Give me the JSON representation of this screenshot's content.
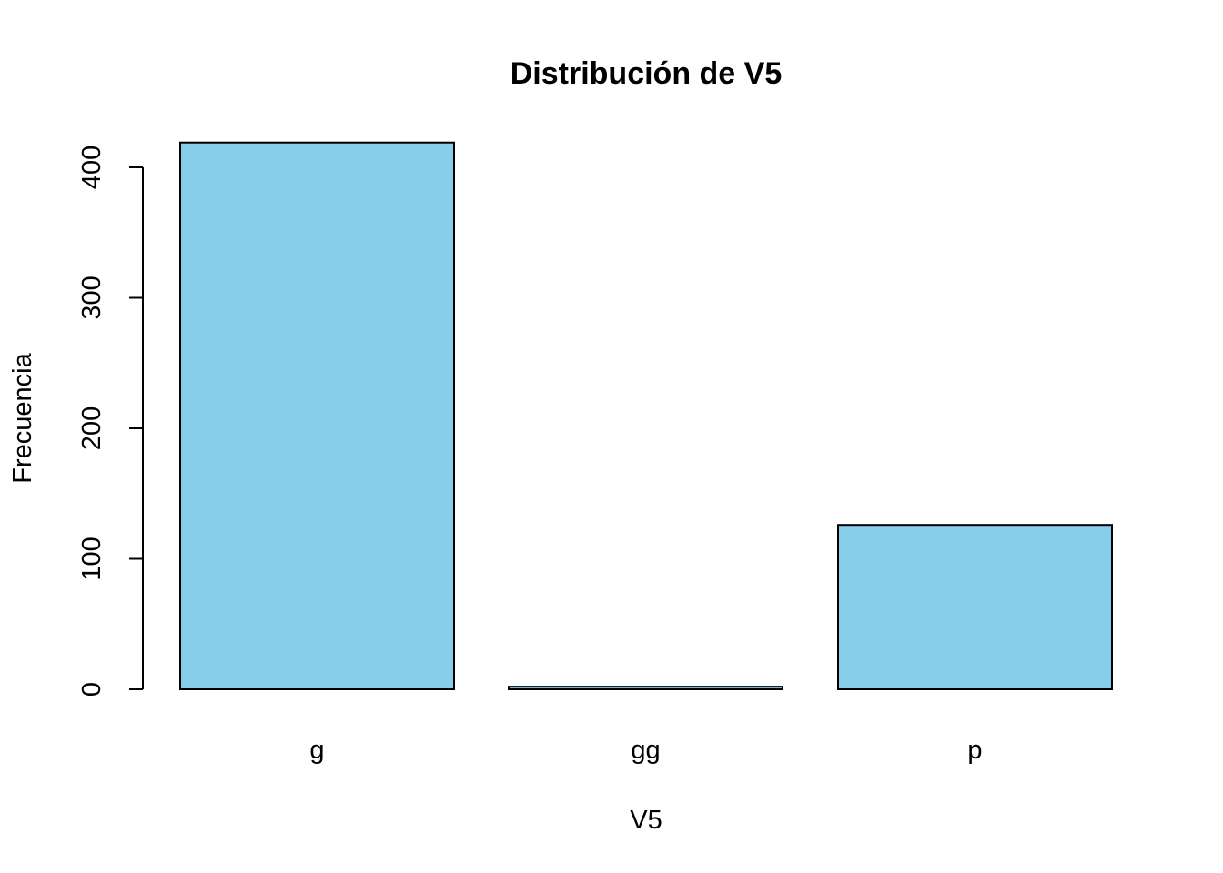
{
  "chart_data": {
    "type": "bar",
    "title": "Distribución de V5",
    "xlabel": "V5",
    "ylabel": "Frecuencia",
    "categories": [
      "g",
      "gg",
      "p"
    ],
    "values": [
      419,
      2,
      126
    ],
    "ylim": [
      0,
      400
    ],
    "yticks": [
      "0",
      "100",
      "200",
      "300",
      "400"
    ],
    "bar_color": "#87CEEB",
    "grid": false
  }
}
